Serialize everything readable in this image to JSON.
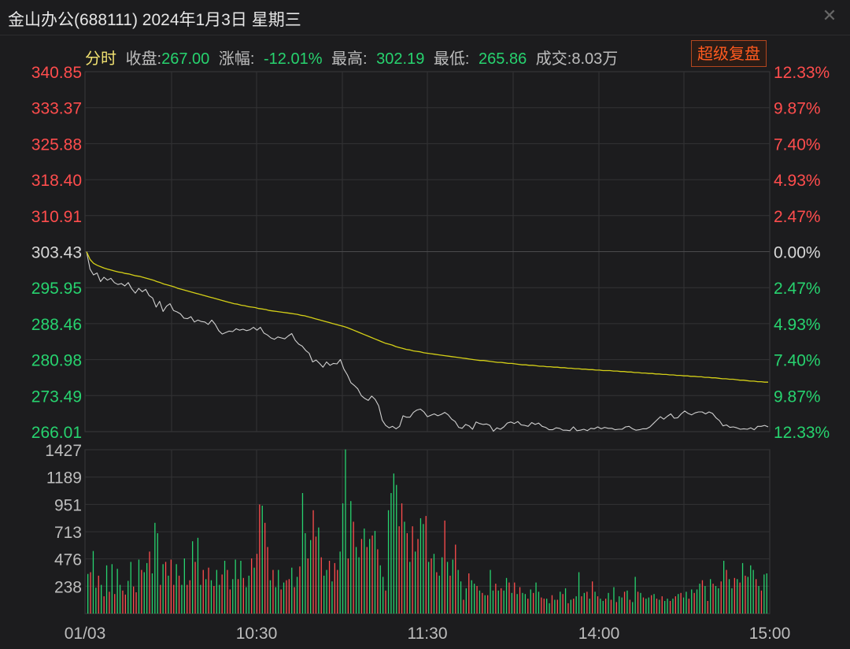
{
  "window": {
    "title": "金山办公(688111) 2024年1月3日 星期三",
    "close_icon": "close-icon"
  },
  "info": {
    "mode": "分时",
    "close_label": "收盘:",
    "close_value": "267.00",
    "change_label": "涨幅:",
    "change_value": "-12.01%",
    "high_label": "最高:",
    "high_value": "302.19",
    "low_label": "最低:",
    "low_value": "265.86",
    "volume_label": "成交:",
    "volume_value": "8.03万",
    "button": "超级复盘"
  },
  "colors": {
    "up": "#ff4d4d",
    "down": "#27d36f",
    "neutral": "#d8d8d8",
    "price_line": "#d0d0d0",
    "avg_line": "#d4cf17",
    "button": "#ff5a1f"
  },
  "chart_data": [
    {
      "type": "line",
      "x_ticks": [
        "01/03",
        "10:30",
        "11:30",
        "14:00",
        "15:00"
      ],
      "prev_close": 303.43,
      "ylim": [
        266.01,
        340.85
      ],
      "y_ticks": [
        "340.85",
        "333.37",
        "325.88",
        "318.40",
        "310.91",
        "303.43",
        "295.95",
        "288.46",
        "280.98",
        "273.49",
        "266.01"
      ],
      "y_ticks_pct": [
        "12.33%",
        "9.87%",
        "7.40%",
        "4.93%",
        "2.47%",
        "0.00%",
        "2.47%",
        "4.93%",
        "7.40%",
        "9.87%",
        "12.33%"
      ],
      "series": [
        {
          "values": [
            303.4,
            299.8,
            298.6,
            299.0,
            297.2,
            298.1,
            297.5,
            297.9,
            297.0,
            296.6,
            296.8,
            296.3,
            297.0,
            295.7,
            294.8,
            295.8,
            295.1,
            295.6,
            294.3,
            293.8,
            291.9,
            293.1,
            291.0,
            292.1,
            292.6,
            291.2,
            290.9,
            290.5,
            289.6,
            289.5,
            289.9,
            288.8,
            289.2,
            288.9,
            288.8,
            288.3,
            289.2,
            288.3,
            287.0,
            286.3,
            286.6,
            286.9,
            286.8,
            287.4,
            287.1,
            287.3,
            287.0,
            287.2,
            287.7,
            287.1,
            287.7,
            286.5,
            286.1,
            285.5,
            285.2,
            285.7,
            285.5,
            285.3,
            285.9,
            286.4,
            285.0,
            284.2,
            283.8,
            282.9,
            282.3,
            280.5,
            280.9,
            280.2,
            279.4,
            280.5,
            279.8,
            280.2,
            280.1,
            281.0,
            279.0,
            277.8,
            276.2,
            275.6,
            274.9,
            273.5,
            272.9,
            272.5,
            273.4,
            272.7,
            271.4,
            268.4,
            267.3,
            266.8,
            267.1,
            266.6,
            267.1,
            269.3,
            269.0,
            269.0,
            270.0,
            270.5,
            270.7,
            270.1,
            269.1,
            269.4,
            269.7,
            269.3,
            269.6,
            270.0,
            269.5,
            268.6,
            268.1,
            266.9,
            266.7,
            267.5,
            267.2,
            266.5,
            268.0,
            267.7,
            267.5,
            267.6,
            267.3,
            266.1,
            266.8,
            266.5,
            267.0,
            267.8,
            268.0,
            267.7,
            268.1,
            267.4,
            267.3,
            267.1,
            267.9,
            267.5,
            267.8,
            267.1,
            266.9,
            266.4,
            266.4,
            266.8,
            266.7,
            266.3,
            266.3,
            266.2,
            267.0,
            266.2,
            266.3,
            266.5,
            266.2,
            266.7,
            266.6,
            267.0,
            266.6,
            266.9,
            266.7,
            266.7,
            266.4,
            266.5,
            266.5,
            267.0,
            267.1,
            266.6,
            266.3,
            266.4,
            266.6,
            266.6,
            267.0,
            267.7,
            268.4,
            269.1,
            268.6,
            269.2,
            269.7,
            268.8,
            268.9,
            269.7,
            270.3,
            269.8,
            269.5,
            269.9,
            270.1,
            270.1,
            269.7,
            270.1,
            269.8,
            268.9,
            268.3,
            267.2,
            267.4,
            266.9,
            267.0,
            266.8,
            266.5,
            266.6,
            266.5,
            266.8,
            266.4,
            267.1,
            267.1,
            267.3,
            267.0
          ]
        },
        {
          "values": [
            303.4,
            301.8,
            301.0,
            300.6,
            300.3,
            300.0,
            299.8,
            299.6,
            299.4,
            299.2,
            299.1,
            298.9,
            298.8,
            298.6,
            298.4,
            298.3,
            298.1,
            297.9,
            297.7,
            297.5,
            297.2,
            297.0,
            296.7,
            296.5,
            296.3,
            296.1,
            295.8,
            295.6,
            295.4,
            295.2,
            295.0,
            294.8,
            294.6,
            294.4,
            294.2,
            294.0,
            293.8,
            293.6,
            293.4,
            293.2,
            293.0,
            292.8,
            292.6,
            292.5,
            292.3,
            292.2,
            292.0,
            291.9,
            291.8,
            291.6,
            291.5,
            291.4,
            291.2,
            291.1,
            291.0,
            290.9,
            290.8,
            290.7,
            290.6,
            290.5,
            290.4,
            290.2,
            290.1,
            289.9,
            289.7,
            289.5,
            289.3,
            289.1,
            288.9,
            288.7,
            288.5,
            288.3,
            288.1,
            287.9,
            287.7,
            287.4,
            287.1,
            286.8,
            286.5,
            286.2,
            285.9,
            285.6,
            285.3,
            285.0,
            284.7,
            284.4,
            284.2,
            284.0,
            283.7,
            283.5,
            283.3,
            283.1,
            283.0,
            282.8,
            282.7,
            282.6,
            282.4,
            282.3,
            282.2,
            282.1,
            282.0,
            281.9,
            281.8,
            281.7,
            281.6,
            281.5,
            281.4,
            281.3,
            281.2,
            281.1,
            281.0,
            280.9,
            280.8,
            280.8,
            280.7,
            280.6,
            280.5,
            280.4,
            280.4,
            280.3,
            280.2,
            280.2,
            280.1,
            280.0,
            279.9,
            279.9,
            279.8,
            279.8,
            279.7,
            279.6,
            279.6,
            279.5,
            279.5,
            279.4,
            279.4,
            279.3,
            279.3,
            279.2,
            279.2,
            279.1,
            279.1,
            279.0,
            279.0,
            278.9,
            278.9,
            278.8,
            278.8,
            278.7,
            278.7,
            278.7,
            278.6,
            278.6,
            278.5,
            278.5,
            278.4,
            278.4,
            278.3,
            278.3,
            278.2,
            278.2,
            278.1,
            278.1,
            278.0,
            278.0,
            277.9,
            277.9,
            277.8,
            277.8,
            277.7,
            277.7,
            277.6,
            277.6,
            277.5,
            277.5,
            277.4,
            277.4,
            277.3,
            277.3,
            277.2,
            277.2,
            277.1,
            277.0,
            277.0,
            276.9,
            276.9,
            276.8,
            276.7,
            276.7,
            276.6,
            276.5,
            276.5,
            276.4,
            276.4,
            276.3,
            276.3
          ]
        }
      ]
    },
    {
      "type": "bar",
      "ylim": [
        0,
        1427
      ],
      "y_ticks": [
        "1427",
        "1189",
        "951",
        "713",
        "476",
        "238"
      ],
      "values": [
        345,
        360,
        545,
        225,
        330,
        250,
        150,
        420,
        190,
        430,
        170,
        390,
        250,
        200,
        165,
        285,
        450,
        235,
        185,
        470,
        380,
        360,
        440,
        540,
        350,
        790,
        700,
        250,
        430,
        450,
        330,
        470,
        250,
        430,
        330,
        250,
        480,
        250,
        290,
        630,
        450,
        660,
        250,
        380,
        300,
        400,
        290,
        240,
        380,
        250,
        340,
        460,
        380,
        210,
        300,
        470,
        300,
        460,
        310,
        230,
        330,
        480,
        400,
        520,
        950,
        940,
        790,
        580,
        290,
        380,
        230,
        380,
        210,
        270,
        290,
        300,
        400,
        230,
        320,
        410,
        1050,
        700,
        480,
        640,
        900,
        670,
        750,
        490,
        330,
        380,
        460,
        280,
        440,
        380,
        540,
        960,
        1430,
        480,
        980,
        800,
        580,
        490,
        650,
        740,
        580,
        650,
        680,
        720,
        560,
        420,
        320,
        200,
        900,
        1050,
        1220,
        1120,
        760,
        960,
        800,
        700,
        450,
        760,
        540,
        650,
        830,
        780,
        850,
        450,
        480,
        520,
        360,
        330,
        490,
        810,
        450,
        330,
        470,
        600,
        380,
        280,
        120,
        220,
        350,
        290,
        260,
        240,
        200,
        180,
        160,
        160,
        380,
        200,
        260,
        200,
        220,
        200,
        310,
        270,
        180,
        270,
        170,
        230,
        180,
        170,
        130,
        210,
        180,
        270,
        190,
        140,
        130,
        130,
        90,
        160,
        120,
        120,
        190,
        170,
        220,
        90,
        120,
        130,
        150,
        360,
        150,
        180,
        190,
        130,
        280,
        190,
        150,
        130,
        110,
        130,
        180,
        120,
        230,
        100,
        150,
        140,
        190,
        200,
        120,
        100,
        320,
        190,
        180,
        140,
        130,
        140,
        160,
        170,
        130,
        120,
        150,
        110,
        130,
        110,
        130,
        150,
        170,
        180,
        140,
        190,
        130,
        210,
        180,
        210,
        260,
        290,
        240,
        110,
        300,
        260,
        240,
        220,
        280,
        460,
        380,
        300,
        220,
        310,
        300,
        270,
        440,
        330,
        320,
        420,
        380,
        300,
        240,
        200,
        340,
        350
      ],
      "colors": [
        "g",
        "r",
        "g",
        "g",
        "r",
        "g",
        "r",
        "g",
        "r",
        "g",
        "r",
        "g",
        "g",
        "r",
        "r",
        "g",
        "g",
        "r",
        "r",
        "g",
        "r",
        "g",
        "g",
        "r",
        "g",
        "g",
        "g",
        "r",
        "g",
        "r",
        "g",
        "r",
        "r",
        "g",
        "r",
        "g",
        "g",
        "r",
        "r",
        "g",
        "r",
        "g",
        "g",
        "r",
        "g",
        "r",
        "g",
        "r",
        "g",
        "g",
        "r",
        "g",
        "r",
        "r",
        "g",
        "g",
        "r",
        "g",
        "r",
        "g",
        "g",
        "r",
        "g",
        "r",
        "r",
        "g",
        "r",
        "r",
        "g",
        "r",
        "g",
        "g",
        "r",
        "g",
        "r",
        "r",
        "g",
        "r",
        "g",
        "r",
        "g",
        "g",
        "r",
        "g",
        "r",
        "r",
        "g",
        "r",
        "g",
        "g",
        "r",
        "g",
        "r",
        "r",
        "g",
        "g",
        "g",
        "r",
        "g",
        "r",
        "g",
        "g",
        "r",
        "g",
        "r",
        "g",
        "r",
        "g",
        "r",
        "g",
        "g",
        "r",
        "g",
        "g",
        "g",
        "g",
        "r",
        "r",
        "g",
        "r",
        "g",
        "r",
        "g",
        "r",
        "g",
        "g",
        "r",
        "g",
        "r",
        "g",
        "r",
        "g",
        "g",
        "r",
        "g",
        "r",
        "g",
        "r",
        "g",
        "g",
        "r",
        "g",
        "r",
        "g",
        "g",
        "r",
        "g",
        "r",
        "g",
        "r",
        "g",
        "g",
        "r",
        "g",
        "r",
        "g",
        "g",
        "r",
        "g",
        "r",
        "g",
        "r",
        "g",
        "g",
        "r",
        "g",
        "r",
        "g",
        "g",
        "r",
        "r",
        "g",
        "g",
        "r",
        "g",
        "r",
        "g",
        "r",
        "g",
        "r",
        "g",
        "r",
        "g",
        "g",
        "r",
        "g",
        "r",
        "g",
        "r",
        "g",
        "r",
        "g",
        "g",
        "r",
        "g",
        "r",
        "g",
        "r",
        "g",
        "g",
        "r",
        "g",
        "r",
        "g",
        "g",
        "r",
        "g",
        "r",
        "g",
        "g",
        "r",
        "g",
        "r",
        "g",
        "r",
        "g",
        "g",
        "r",
        "g",
        "r",
        "g",
        "r",
        "g",
        "g",
        "r",
        "g",
        "r",
        "g",
        "g",
        "r",
        "g",
        "r",
        "g",
        "r",
        "g",
        "g",
        "r",
        "g",
        "r",
        "g",
        "g",
        "r",
        "g",
        "r",
        "g",
        "r",
        "g",
        "g",
        "g",
        "r",
        "g",
        "r",
        "g",
        "g",
        "g",
        "r",
        "g"
      ]
    }
  ]
}
